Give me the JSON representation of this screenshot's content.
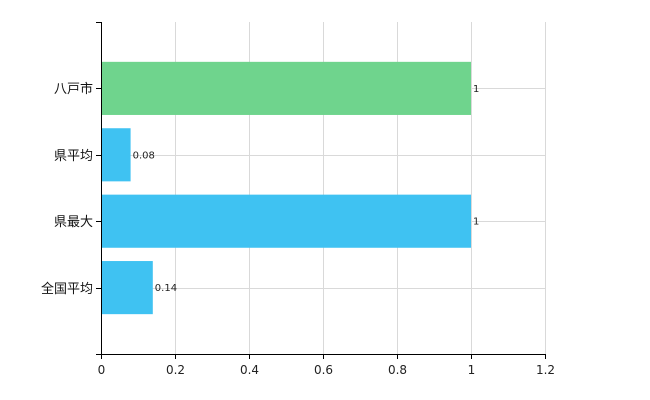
{
  "chart_data": {
    "type": "bar",
    "orientation": "horizontal",
    "categories": [
      "八戸市",
      "県平均",
      "県最大",
      "全国平均"
    ],
    "values": [
      1,
      0.08,
      1,
      0.14
    ],
    "data_labels": [
      "1",
      "0.08",
      "1",
      "0.14"
    ],
    "bar_colors": [
      "#6fd48d",
      "#3fc2f2",
      "#3fc2f2",
      "#3fc2f2"
    ],
    "xlim": [
      0,
      1.2
    ],
    "xticks": [
      0,
      0.2,
      0.4,
      0.6,
      0.8,
      1,
      1.2
    ],
    "xtick_labels": [
      "0",
      "0.2",
      "0.4",
      "0.6",
      "0.8",
      "1",
      "1.2"
    ],
    "grid": true,
    "legend": "none",
    "title": "",
    "xlabel": "",
    "ylabel": ""
  }
}
